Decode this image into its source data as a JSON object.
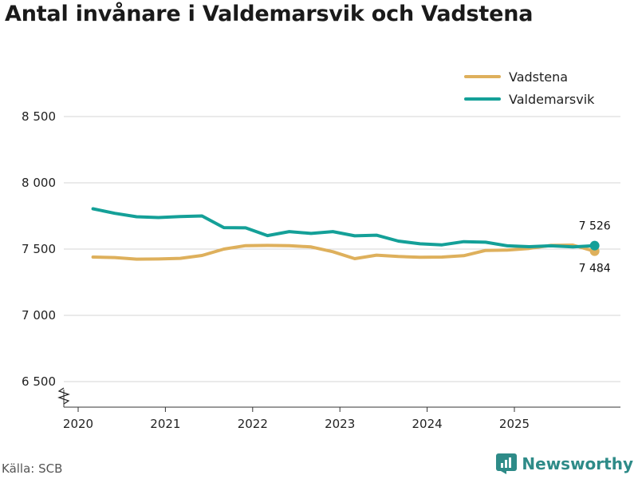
{
  "title": "Antal invånare i Valdemarsvik och Vadstena",
  "source": "Källa: SCB",
  "brand": {
    "name": "Newsworthy",
    "icon": "newsworthy-logo-icon"
  },
  "colors": {
    "vadstena": "#DEB05C",
    "valdemarsvik": "#14A098",
    "grid": "#d4d4d4",
    "axis": "#333333",
    "brand": "#2e8b88"
  },
  "chart_data": {
    "type": "line",
    "title": "Antal invånare i Valdemarsvik och Vadstena",
    "xlabel": "",
    "ylabel": "",
    "ylim": [
      6300,
      8700
    ],
    "xlim": [
      2019.9,
      2026.2
    ],
    "yticks": [
      6500,
      7000,
      7500,
      8000,
      8500
    ],
    "ytick_labels": [
      "6 500",
      "7 000",
      "7 500",
      "8 000",
      "8 500"
    ],
    "xticks": [
      2020,
      2021,
      2022,
      2023,
      2024,
      2025
    ],
    "xtick_labels": [
      "2020",
      "2021",
      "2022",
      "2023",
      "2024",
      "2025"
    ],
    "grid": true,
    "legend_position": "top-right",
    "x": [
      2020.17,
      2020.42,
      2020.67,
      2020.92,
      2021.17,
      2021.42,
      2021.67,
      2021.92,
      2022.17,
      2022.42,
      2022.67,
      2022.92,
      2023.17,
      2023.42,
      2023.67,
      2023.92,
      2024.17,
      2024.42,
      2024.67,
      2024.92,
      2025.17,
      2025.42,
      2025.67,
      2025.92
    ],
    "series": [
      {
        "name": "Vadstena",
        "color": "#DEB05C",
        "values": [
          7440,
          7436,
          7424,
          7425,
          7430,
          7452,
          7500,
          7526,
          7528,
          7526,
          7516,
          7480,
          7428,
          7454,
          7444,
          7438,
          7440,
          7450,
          7490,
          7492,
          7505,
          7528,
          7530,
          7484
        ],
        "end_label": "7 484"
      },
      {
        "name": "Valdemarsvik",
        "color": "#14A098",
        "values": [
          7804,
          7770,
          7744,
          7738,
          7746,
          7750,
          7662,
          7660,
          7602,
          7632,
          7618,
          7632,
          7600,
          7605,
          7560,
          7540,
          7532,
          7556,
          7552,
          7525,
          7518,
          7525,
          7516,
          7526
        ],
        "end_label": "7 526"
      }
    ]
  }
}
